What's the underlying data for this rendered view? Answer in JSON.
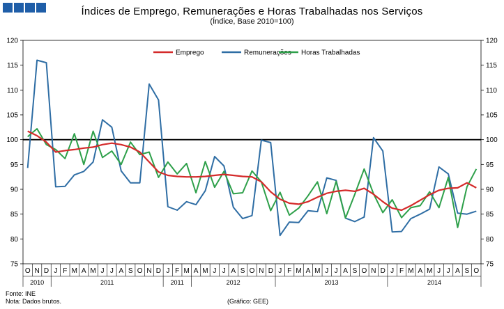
{
  "header": {
    "title": "Índices de Emprego, Remunerações e Horas Trabalhadas nos Serviços",
    "subtitle": "(Índice, Base 2010=100)"
  },
  "footer": {
    "source": "Fonte: INE",
    "note": "Nota: Dados brutos.",
    "credit": "(Gráfico: GEE)"
  },
  "colors": {
    "emprego": "#d42a2a",
    "remuneracoes": "#2e6da4",
    "horas": "#2ea04a",
    "logo": "#1f5ea8"
  },
  "chart_data": {
    "type": "line",
    "title": "Índices de Emprego, Remunerações e Horas Trabalhadas nos Serviços",
    "subtitle": "(Índice, Base 2010=100)",
    "ylim": [
      75,
      120
    ],
    "yticks": [
      75,
      80,
      85,
      90,
      95,
      100,
      105,
      110,
      115,
      120
    ],
    "reference_line": 100,
    "legend_position": "top",
    "categories": [
      "O",
      "N",
      "D",
      "J",
      "F",
      "M",
      "A",
      "M",
      "J",
      "J",
      "A",
      "S",
      "O",
      "N",
      "D",
      "J",
      "F",
      "M",
      "A",
      "M",
      "J",
      "J",
      "A",
      "S",
      "O",
      "N",
      "D",
      "J",
      "F",
      "M",
      "A",
      "M",
      "J",
      "J",
      "A",
      "S",
      "O",
      "N",
      "D",
      "J",
      "F",
      "M",
      "A",
      "M",
      "J",
      "J",
      "A",
      "S",
      "O"
    ],
    "year_groups": [
      {
        "label": "2010",
        "count": 3
      },
      {
        "label": "2011",
        "count": 12
      },
      {
        "label": "2011",
        "count": 3
      },
      {
        "label": "2012",
        "count": 9
      },
      {
        "label": "2013",
        "count": 12
      },
      {
        "label": "2014",
        "count": 10
      }
    ],
    "series": [
      {
        "name": "Emprego",
        "values": [
          101.7,
          100.8,
          99.5,
          97.5,
          97.8,
          98.0,
          98.3,
          98.5,
          99.0,
          99.3,
          99.0,
          98.5,
          97.5,
          95.5,
          93.5,
          92.8,
          92.6,
          92.5,
          92.5,
          92.6,
          92.8,
          93.0,
          92.8,
          92.6,
          92.5,
          91.5,
          89.5,
          88.0,
          87.2,
          87.0,
          87.5,
          88.4,
          89.2,
          89.6,
          89.8,
          89.6,
          90.2,
          89.0,
          87.5,
          86.2,
          85.8,
          86.7,
          87.8,
          88.9,
          89.8,
          90.2,
          90.3,
          91.3,
          90.3
        ]
      },
      {
        "name": "Remunerações",
        "values": [
          94.3,
          116.0,
          115.5,
          90.5,
          90.6,
          92.9,
          93.6,
          95.5,
          104.0,
          102.5,
          93.7,
          91.3,
          91.3,
          111.2,
          108.0,
          86.5,
          85.8,
          87.5,
          86.9,
          89.7,
          96.6,
          94.7,
          86.4,
          84.1,
          84.7,
          99.9,
          99.4,
          80.7,
          83.4,
          83.3,
          85.7,
          85.5,
          92.3,
          91.8,
          84.2,
          83.5,
          84.4,
          100.4,
          97.7,
          81.4,
          81.5,
          84.1,
          85.0,
          86.0,
          94.5,
          93.1,
          85.2,
          85.0,
          85.6
        ]
      },
      {
        "name": "Horas Trabalhadas",
        "values": [
          100.6,
          102.2,
          99.0,
          98.0,
          96.2,
          101.2,
          95.0,
          101.7,
          96.4,
          97.7,
          95.0,
          99.5,
          97.0,
          97.5,
          92.4,
          95.5,
          93.1,
          95.2,
          89.3,
          95.6,
          90.4,
          93.6,
          89.1,
          89.3,
          93.7,
          91.5,
          85.7,
          89.4,
          84.8,
          86.2,
          88.7,
          91.5,
          85.1,
          91.6,
          84.2,
          89.0,
          94.1,
          89.1,
          85.3,
          87.9,
          84.3,
          86.3,
          86.7,
          89.5,
          86.3,
          92.4,
          82.3,
          90.5,
          94.1
        ]
      }
    ]
  }
}
